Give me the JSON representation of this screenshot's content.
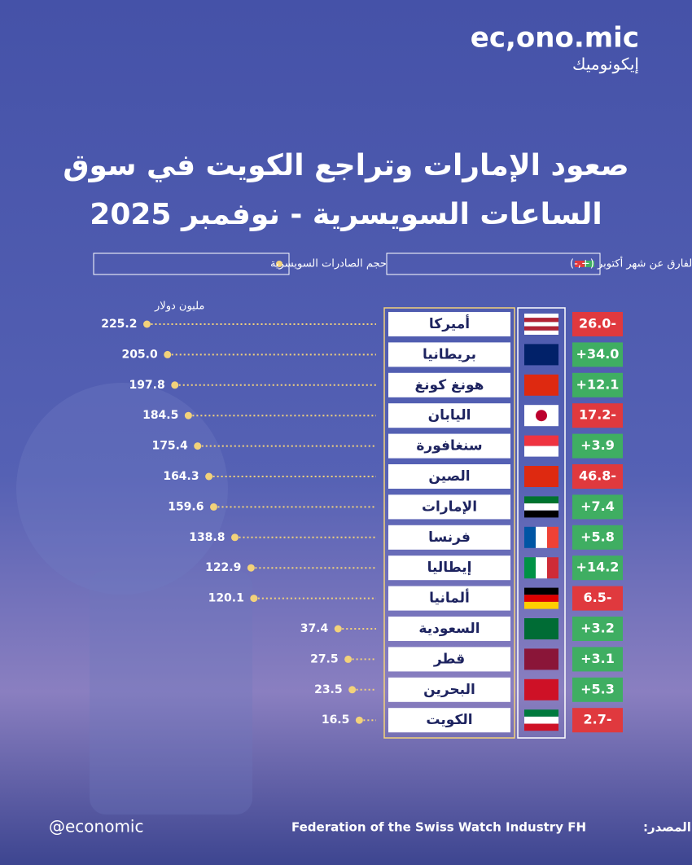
{
  "brand": {
    "name": "ec,ono.mic",
    "name_ar": "إيكونوميك"
  },
  "handle": "@economic",
  "source_label": "المصدر:",
  "source": "Federation of the Swiss Watch Industry FH",
  "chart_data": {
    "type": "lollipop",
    "title": [
      "صعود الإمارات وتراجع الكويت في سوق",
      "الساعات السويسرية - نوفمبر 2025"
    ],
    "unit_label": "مليون دولار",
    "categories": [
      "أميركا",
      "بريطانيا",
      "هونغ كونغ",
      "اليابان",
      "سنغافورة",
      "الصين",
      "الإمارات",
      "فرنسا",
      "إيطاليا",
      "ألمانيا",
      "السعودية",
      "قطر",
      "البحرين",
      "الكويت"
    ],
    "series": [
      {
        "name": "حجم الصادرات السويسرية",
        "color": "#f3d27a",
        "values": [
          225.2,
          205.0,
          197.8,
          184.5,
          175.4,
          164.3,
          159.6,
          138.8,
          122.9,
          120.1,
          37.4,
          27.5,
          23.5,
          16.5
        ],
        "value_labels": [
          "225.2",
          "205.0",
          "197.8",
          "184.5",
          "175.4",
          "164.3",
          "159.6",
          "138.8",
          "122.9",
          "120.1",
          "37.4",
          "27.5",
          "23.5",
          "16.5"
        ]
      },
      {
        "name": "الفارق عن شهر أكتوبر (+,-)",
        "positive_color": "#3fae62",
        "negative_color": "#e0393e",
        "values": [
          -26.0,
          34.0,
          12.1,
          -17.2,
          3.9,
          -46.8,
          7.4,
          5.8,
          14.2,
          -6.5,
          3.2,
          3.1,
          5.3,
          -2.7
        ],
        "value_labels": [
          "26.0-",
          "+34.0",
          "+12.1",
          "17.2-",
          "+3.9",
          "46.8-",
          "+7.4",
          "+5.8",
          "+14.2",
          "6.5-",
          "+3.2",
          "+3.1",
          "+5.3",
          "2.7-"
        ]
      }
    ]
  }
}
